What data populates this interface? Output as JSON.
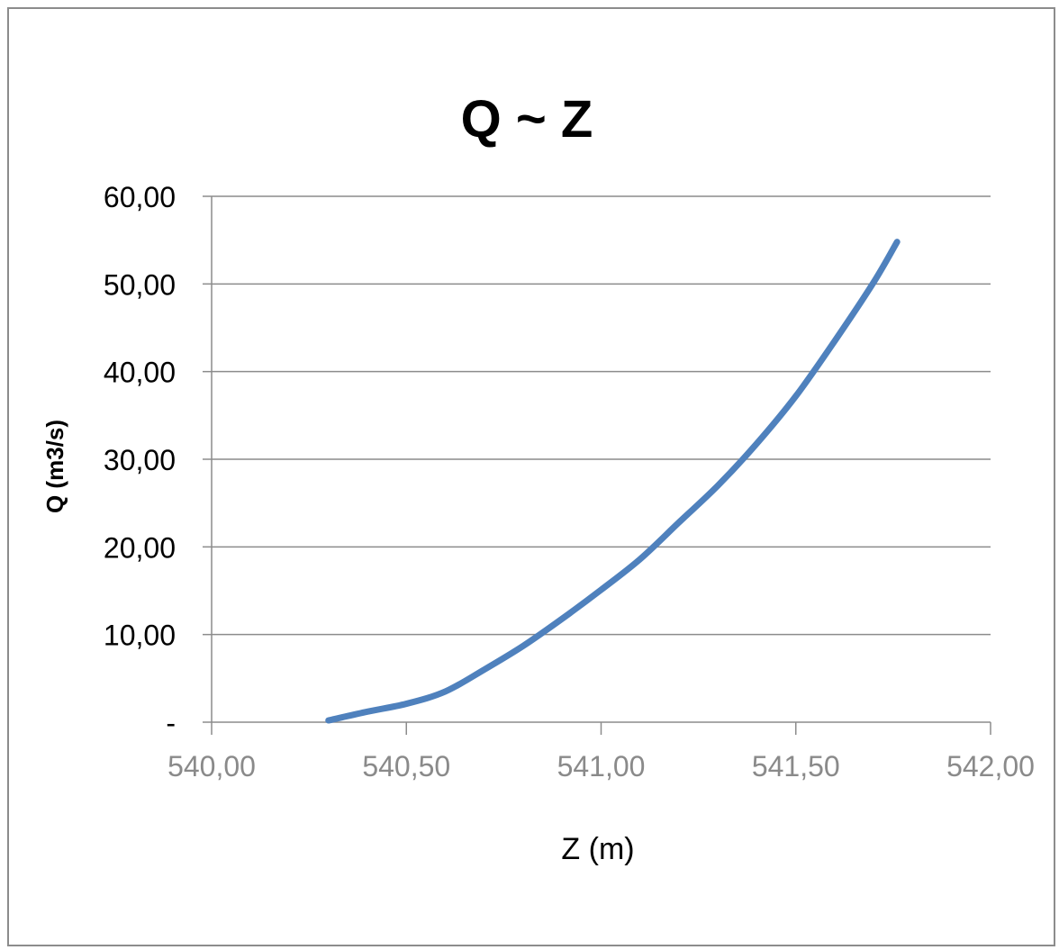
{
  "chart_data": {
    "type": "line",
    "title": "Q ~ Z",
    "xlabel": "Z (m)",
    "ylabel": "Q (m3/s)",
    "xlim": [
      540.0,
      542.0
    ],
    "ylim": [
      0,
      60
    ],
    "x_ticks": [
      540.0,
      540.5,
      541.0,
      541.5,
      542.0
    ],
    "x_tick_labels": [
      "540,00",
      "540,50",
      "541,00",
      "541,50",
      "542,00"
    ],
    "y_ticks": [
      0,
      10,
      20,
      30,
      40,
      50,
      60
    ],
    "y_tick_labels": [
      "-",
      "10,00",
      "20,00",
      "30,00",
      "40,00",
      "50,00",
      "60,00"
    ],
    "grid": "horizontal",
    "legend": "none",
    "series": [
      {
        "color": "#4f81bd",
        "points": [
          [
            540.3,
            0.2
          ],
          [
            540.4,
            1.2
          ],
          [
            540.5,
            2.1
          ],
          [
            540.6,
            3.5
          ],
          [
            540.7,
            6.0
          ],
          [
            540.8,
            8.7
          ],
          [
            540.9,
            11.8
          ],
          [
            541.0,
            15.1
          ],
          [
            541.1,
            18.6
          ],
          [
            541.2,
            22.8
          ],
          [
            541.3,
            27.0
          ],
          [
            541.4,
            31.8
          ],
          [
            541.5,
            37.2
          ],
          [
            541.6,
            43.5
          ],
          [
            541.7,
            50.2
          ],
          [
            541.76,
            54.8
          ]
        ]
      }
    ]
  }
}
